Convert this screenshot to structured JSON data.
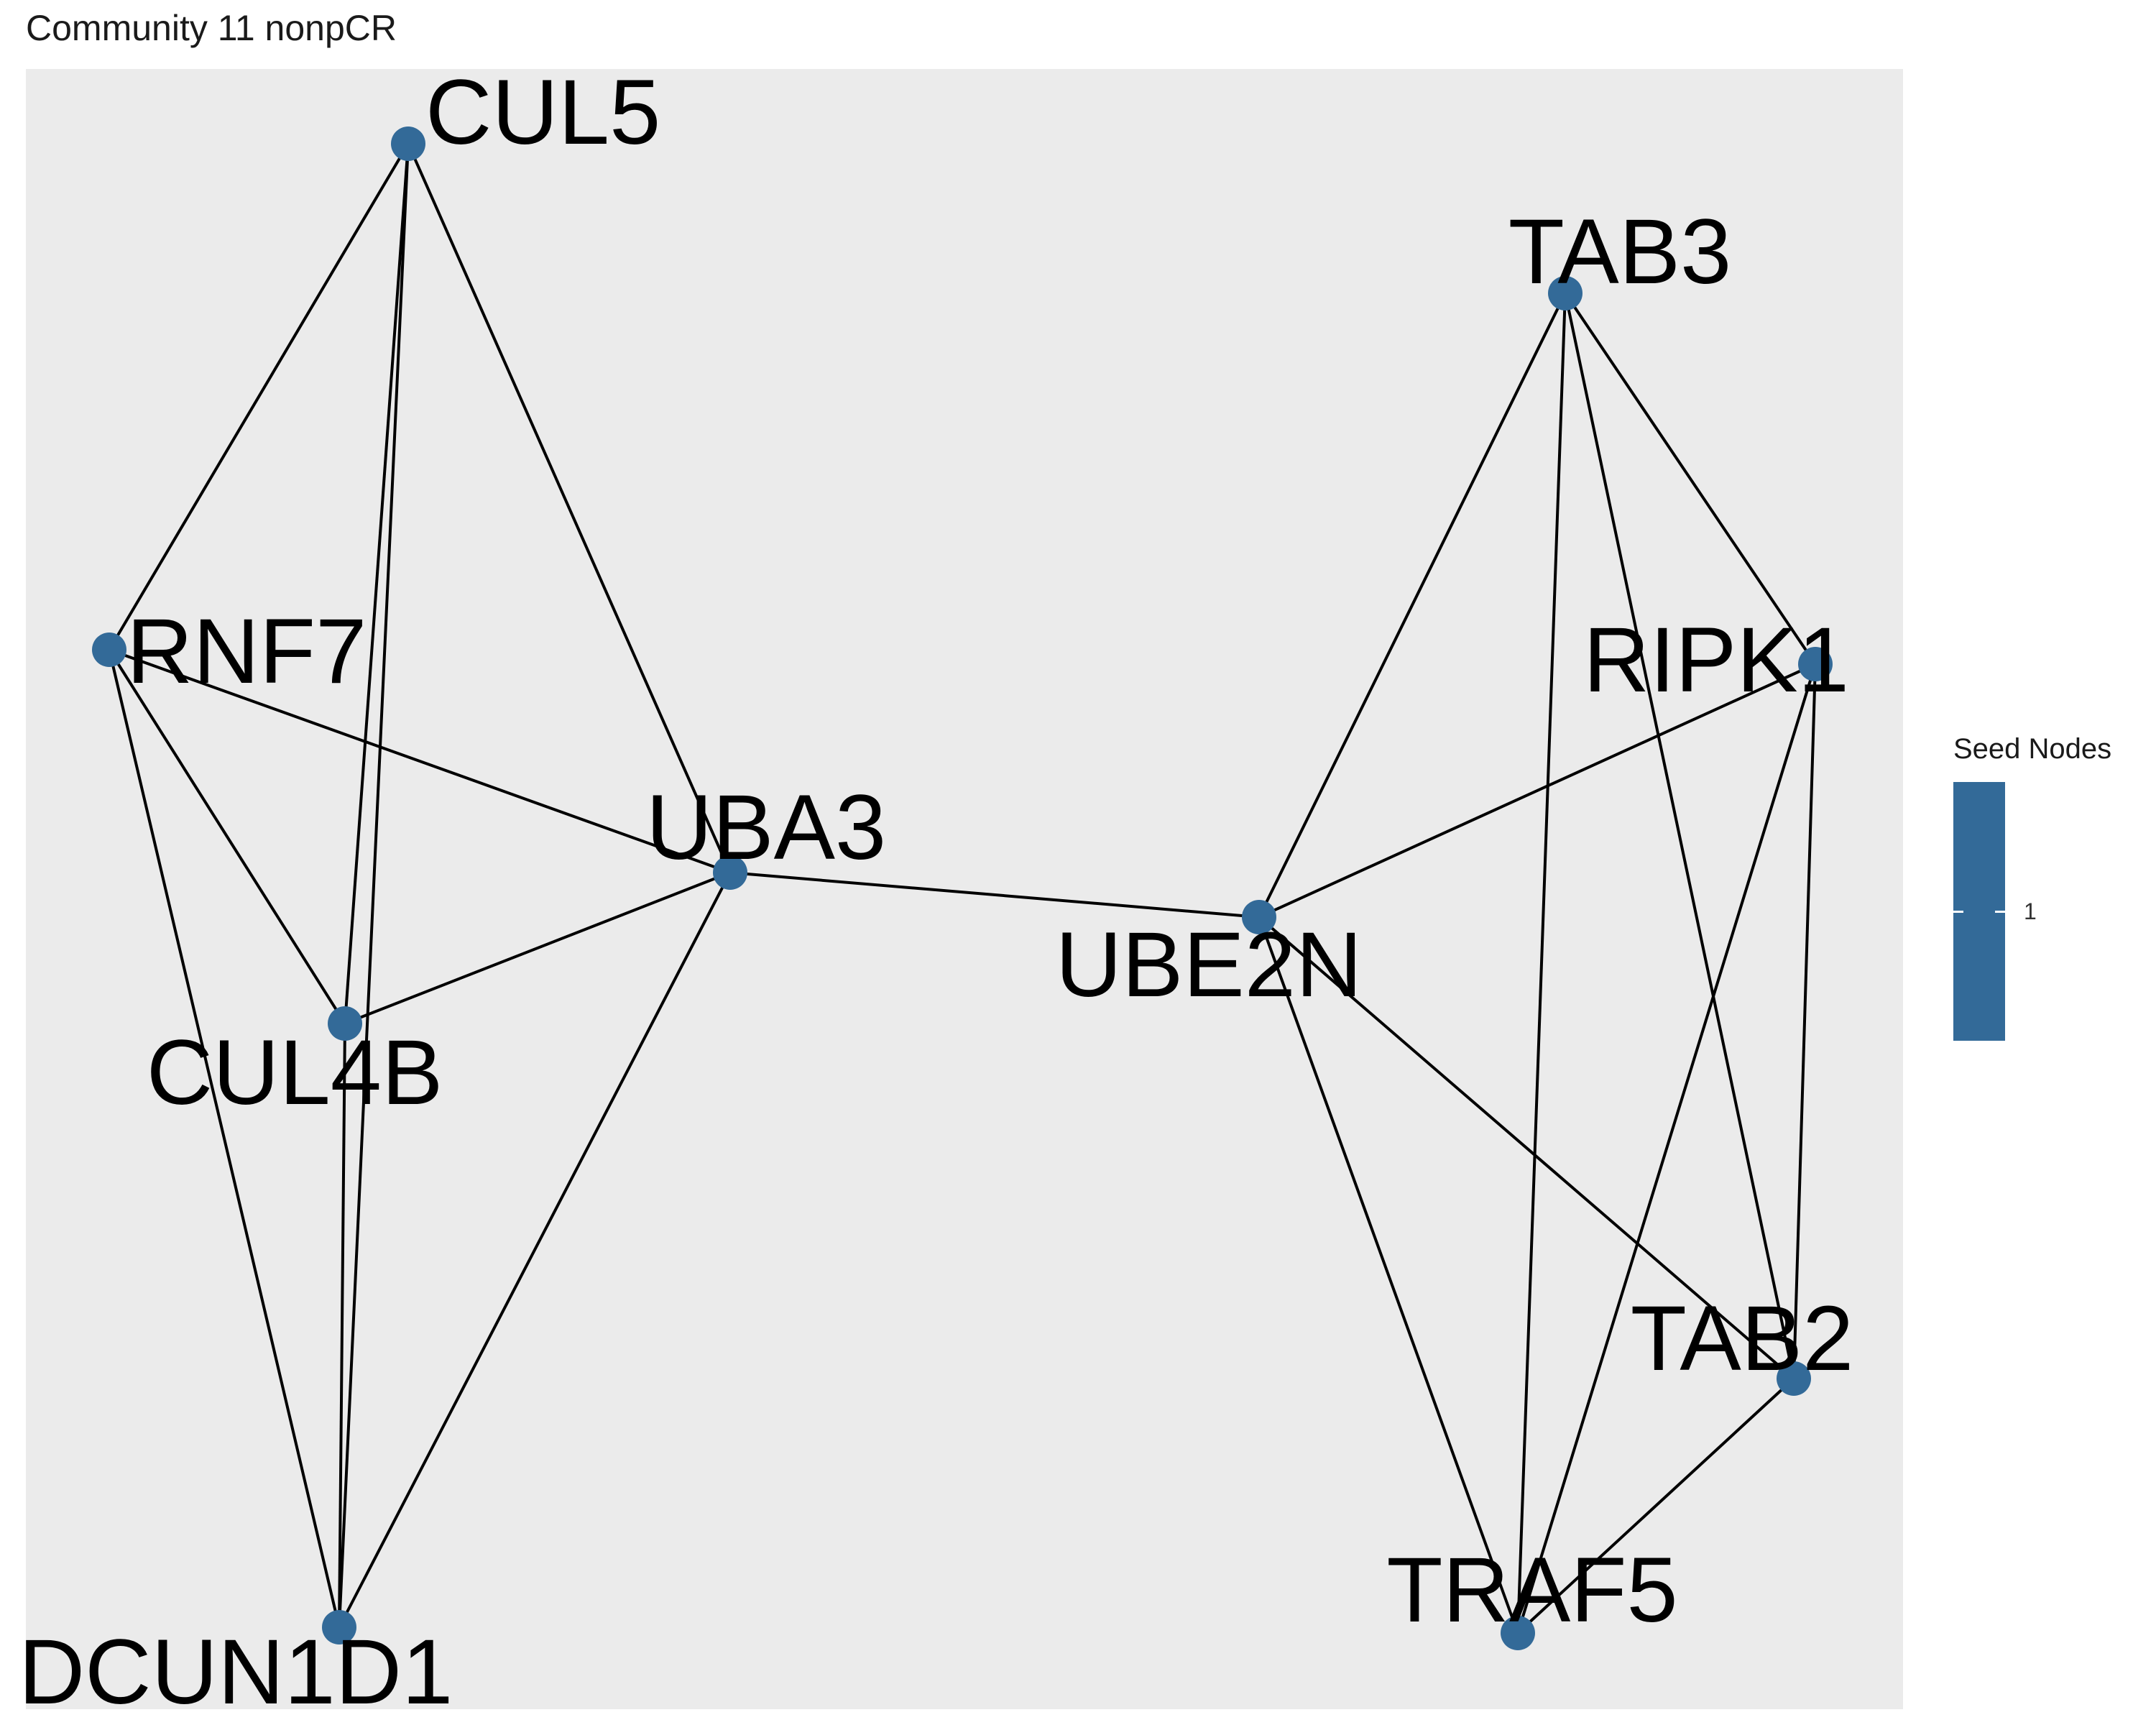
{
  "title": "Community 11 nonpCR",
  "colors": {
    "panel_background": "#ebebeb",
    "node": "#336a98",
    "edge": "#000000"
  },
  "nodes": [
    {
      "id": "CUL5",
      "label": "CUL5"
    },
    {
      "id": "RNF7",
      "label": "RNF7"
    },
    {
      "id": "UBA3",
      "label": "UBA3"
    },
    {
      "id": "CUL4B",
      "label": "CUL4B"
    },
    {
      "id": "DCUN1D1",
      "label": "DCUN1D1"
    },
    {
      "id": "TAB3",
      "label": "TAB3"
    },
    {
      "id": "RIPK1",
      "label": "RIPK1"
    },
    {
      "id": "UBE2N",
      "label": "UBE2N"
    },
    {
      "id": "TAB2",
      "label": "TAB2"
    },
    {
      "id": "TRAF5",
      "label": "TRAF5"
    }
  ],
  "edges": [
    [
      "CUL5",
      "RNF7"
    ],
    [
      "CUL5",
      "CUL4B"
    ],
    [
      "CUL5",
      "DCUN1D1"
    ],
    [
      "CUL5",
      "UBA3"
    ],
    [
      "RNF7",
      "UBA3"
    ],
    [
      "RNF7",
      "CUL4B"
    ],
    [
      "RNF7",
      "DCUN1D1"
    ],
    [
      "UBA3",
      "CUL4B"
    ],
    [
      "UBA3",
      "DCUN1D1"
    ],
    [
      "UBA3",
      "UBE2N"
    ],
    [
      "CUL4B",
      "DCUN1D1"
    ],
    [
      "TAB3",
      "UBE2N"
    ],
    [
      "TAB3",
      "TRAF5"
    ],
    [
      "TAB3",
      "TAB2"
    ],
    [
      "TAB3",
      "RIPK1"
    ],
    [
      "RIPK1",
      "UBE2N"
    ],
    [
      "RIPK1",
      "TRAF5"
    ],
    [
      "RIPK1",
      "TAB2"
    ],
    [
      "UBE2N",
      "TAB2"
    ],
    [
      "UBE2N",
      "TRAF5"
    ],
    [
      "TAB2",
      "TRAF5"
    ]
  ],
  "legend": {
    "title": "Seed Nodes",
    "labels": [
      "1"
    ]
  }
}
